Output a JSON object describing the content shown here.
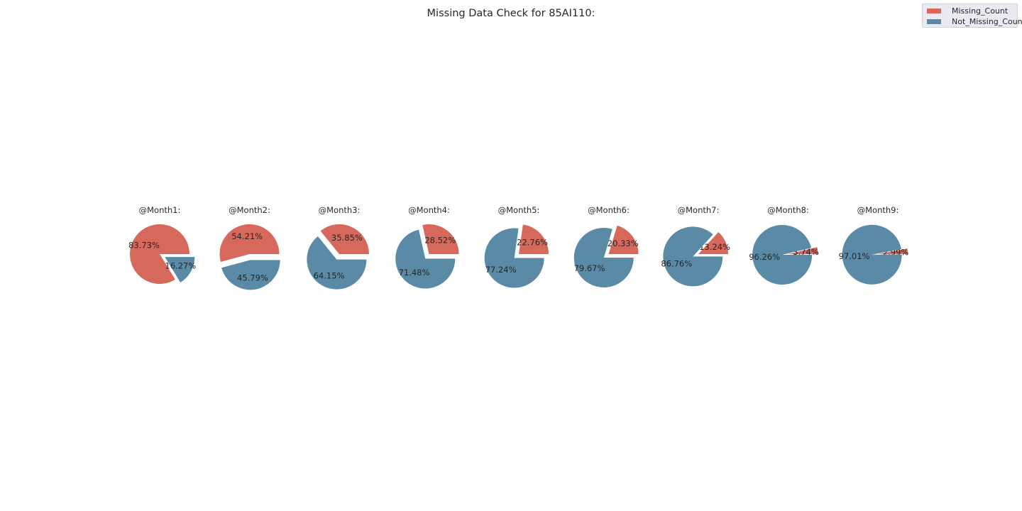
{
  "chart_data": {
    "type": "pie",
    "title": "Missing Data Check for 85AI110:",
    "legend": {
      "placement": "top-right",
      "entries": [
        "Missing_Count",
        "Not_Missing_Count"
      ]
    },
    "colors": {
      "Missing_Count": "#d6695b",
      "Not_Missing_Count": "#5a8aa6"
    },
    "pies": [
      {
        "title": "@Month1:",
        "slices": [
          {
            "name": "Missing_Count",
            "value": 83.73,
            "label": "83.73%"
          },
          {
            "name": "Not_Missing_Count",
            "value": 16.27,
            "label": "16.27%"
          }
        ]
      },
      {
        "title": "@Month2:",
        "slices": [
          {
            "name": "Missing_Count",
            "value": 54.21,
            "label": "54.21%"
          },
          {
            "name": "Not_Missing_Count",
            "value": 45.79,
            "label": "45.79%"
          }
        ]
      },
      {
        "title": "@Month3:",
        "slices": [
          {
            "name": "Missing_Count",
            "value": 35.85,
            "label": "35.85%"
          },
          {
            "name": "Not_Missing_Count",
            "value": 64.15,
            "label": "64.15%"
          }
        ]
      },
      {
        "title": "@Month4:",
        "slices": [
          {
            "name": "Missing_Count",
            "value": 28.52,
            "label": "28.52%"
          },
          {
            "name": "Not_Missing_Count",
            "value": 71.48,
            "label": "71.48%"
          }
        ]
      },
      {
        "title": "@Month5:",
        "slices": [
          {
            "name": "Missing_Count",
            "value": 22.76,
            "label": "22.76%"
          },
          {
            "name": "Not_Missing_Count",
            "value": 77.24,
            "label": "77.24%"
          }
        ]
      },
      {
        "title": "@Month6:",
        "slices": [
          {
            "name": "Missing_Count",
            "value": 20.33,
            "label": "20.33%"
          },
          {
            "name": "Not_Missing_Count",
            "value": 79.67,
            "label": "79.67%"
          }
        ]
      },
      {
        "title": "@Month7:",
        "slices": [
          {
            "name": "Missing_Count",
            "value": 13.24,
            "label": "13.24%"
          },
          {
            "name": "Not_Missing_Count",
            "value": 86.76,
            "label": "86.76%"
          }
        ]
      },
      {
        "title": "@Month8:",
        "slices": [
          {
            "name": "Missing_Count",
            "value": 3.74,
            "label": "3.74%"
          },
          {
            "name": "Not_Missing_Count",
            "value": 96.26,
            "label": "96.26%"
          }
        ]
      },
      {
        "title": "@Month9:",
        "slices": [
          {
            "name": "Missing_Count",
            "value": 2.99,
            "label": "2.99%"
          },
          {
            "name": "Not_Missing_Count",
            "value": 97.01,
            "label": "97.01%"
          }
        ]
      }
    ]
  }
}
